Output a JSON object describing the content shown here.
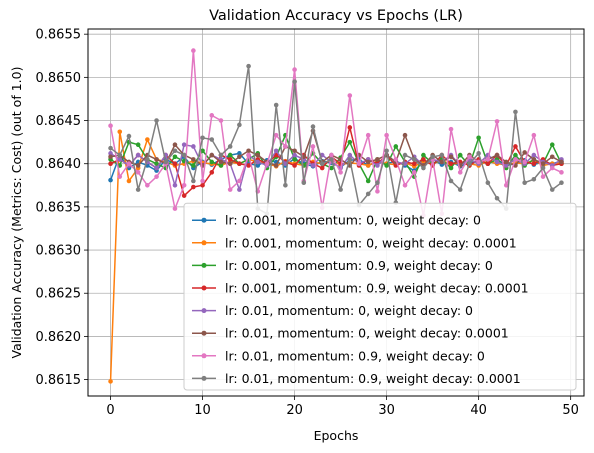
{
  "chart_data": {
    "type": "line",
    "title": "Validation Accuracy vs Epochs (LR)",
    "xlabel": "Epochs",
    "ylabel": "Validation Accuracy (Metrics: Cost) (out of 1.0)",
    "xlim": [
      -2.45,
      51.45
    ],
    "ylim": [
      0.86131,
      0.86556
    ],
    "xticks": [
      0,
      10,
      20,
      30,
      40,
      50
    ],
    "xtick_labels": [
      "0",
      "10",
      "20",
      "30",
      "40",
      "50"
    ],
    "yticks": [
      0.8615,
      0.862,
      0.8625,
      0.863,
      0.8635,
      0.864,
      0.8645,
      0.865,
      0.8655
    ],
    "ytick_labels": [
      "0.8615",
      "0.8620",
      "0.8625",
      "0.8630",
      "0.8635",
      "0.8640",
      "0.8645",
      "0.8650",
      "0.8655"
    ],
    "grid": true,
    "legend_position": "lower-right",
    "x": [
      0,
      1,
      2,
      3,
      4,
      5,
      6,
      7,
      8,
      9,
      10,
      11,
      12,
      13,
      14,
      15,
      16,
      17,
      18,
      19,
      20,
      21,
      22,
      23,
      24,
      25,
      26,
      27,
      28,
      29,
      30,
      31,
      32,
      33,
      34,
      35,
      36,
      37,
      38,
      39,
      40,
      41,
      42,
      43,
      44,
      45,
      46,
      47,
      48,
      49
    ],
    "series": [
      {
        "name": "lr: 0.001, momentum: 0, weight decay: 0",
        "color": "#1f77b4",
        "values": [
          0.86381,
          0.8641,
          0.86395,
          0.86402,
          0.86398,
          0.86392,
          0.86405,
          0.864,
          0.86408,
          0.86395,
          0.86402,
          0.86399,
          0.86405,
          0.8641,
          0.86412,
          0.864,
          0.86398,
          0.86404,
          0.86402,
          0.86398,
          0.86406,
          0.864,
          0.86397,
          0.86403,
          0.86401,
          0.86396,
          0.86404,
          0.86405,
          0.86398,
          0.86402,
          0.864,
          0.86403,
          0.86398,
          0.86392,
          0.86402,
          0.86405,
          0.86399,
          0.86402,
          0.86397,
          0.86401,
          0.86403,
          0.864,
          0.86405,
          0.86398,
          0.864,
          0.86404,
          0.86399,
          0.86402,
          0.864,
          0.86403
        ]
      },
      {
        "name": "lr: 0.001, momentum: 0, weight decay: 0.0001",
        "color": "#ff7f0e",
        "values": [
          0.86148,
          0.86437,
          0.8638,
          0.86395,
          0.86428,
          0.86405,
          0.86402,
          0.86398,
          0.864,
          0.86403,
          0.86401,
          0.864,
          0.86398,
          0.86402,
          0.864,
          0.86405,
          0.86402,
          0.864,
          0.86397,
          0.86403,
          0.864,
          0.86398,
          0.86402,
          0.864,
          0.86404,
          0.86399,
          0.86401,
          0.864,
          0.86398,
          0.86403,
          0.864,
          0.86399,
          0.86401,
          0.86397,
          0.86402,
          0.864,
          0.86404,
          0.86399,
          0.86401,
          0.864,
          0.86398,
          0.86403,
          0.864,
          0.86399,
          0.86401,
          0.864,
          0.86404,
          0.86398,
          0.864,
          0.86401
        ]
      },
      {
        "name": "lr: 0.001, momentum: 0.9, weight decay: 0",
        "color": "#2ca02c",
        "values": [
          0.86405,
          0.86398,
          0.86425,
          0.86422,
          0.86405,
          0.864,
          0.86395,
          0.86408,
          0.86403,
          0.86398,
          0.86415,
          0.86402,
          0.86398,
          0.8641,
          0.864,
          0.86405,
          0.86412,
          0.86395,
          0.86408,
          0.86433,
          0.86405,
          0.86398,
          0.86412,
          0.864,
          0.86395,
          0.86407,
          0.86425,
          0.864,
          0.8638,
          0.86405,
          0.86398,
          0.8642,
          0.86402,
          0.86385,
          0.8641,
          0.864,
          0.86405,
          0.86395,
          0.8641,
          0.86398,
          0.8643,
          0.864,
          0.86405,
          0.86395,
          0.8641,
          0.86398,
          0.86405,
          0.864,
          0.86422,
          0.864
        ]
      },
      {
        "name": "lr: 0.001, momentum: 0.9, weight decay: 0.0001",
        "color": "#d62728",
        "values": [
          0.864,
          0.86405,
          0.86398,
          0.8641,
          0.86402,
          0.86395,
          0.8641,
          0.864,
          0.86363,
          0.86373,
          0.86375,
          0.8639,
          0.8641,
          0.86405,
          0.864,
          0.86398,
          0.86405,
          0.864,
          0.8641,
          0.86402,
          0.86398,
          0.8641,
          0.864,
          0.86395,
          0.86408,
          0.864,
          0.86442,
          0.86398,
          0.86405,
          0.864,
          0.8641,
          0.86398,
          0.86402,
          0.864,
          0.86405,
          0.86398,
          0.8641,
          0.864,
          0.86402,
          0.86398,
          0.86405,
          0.864,
          0.8641,
          0.86398,
          0.8642,
          0.86402,
          0.864,
          0.86405,
          0.86398,
          0.864
        ]
      },
      {
        "name": "lr: 0.01, momentum: 0, weight decay: 0",
        "color": "#9467bd",
        "values": [
          0.86412,
          0.86405,
          0.86398,
          0.8641,
          0.86402,
          0.86395,
          0.8641,
          0.86375,
          0.86422,
          0.8642,
          0.86398,
          0.8641,
          0.86405,
          0.864,
          0.8637,
          0.8641,
          0.86402,
          0.86398,
          0.86415,
          0.864,
          0.8641,
          0.86405,
          0.86398,
          0.8641,
          0.86402,
          0.86395,
          0.8641,
          0.864,
          0.86405,
          0.86398,
          0.8641,
          0.86402,
          0.864,
          0.86408,
          0.86398,
          0.86405,
          0.86402,
          0.8641,
          0.86398,
          0.86405,
          0.864,
          0.8641,
          0.86402,
          0.86398,
          0.86405,
          0.864,
          0.8641,
          0.86402,
          0.86398,
          0.86405
        ]
      },
      {
        "name": "lr: 0.01, momentum: 0, weight decay: 0.0001",
        "color": "#8c564b",
        "values": [
          0.86408,
          0.8641,
          0.86402,
          0.86398,
          0.8641,
          0.86405,
          0.864,
          0.86422,
          0.8641,
          0.86405,
          0.86398,
          0.8641,
          0.86402,
          0.864,
          0.86408,
          0.86415,
          0.8641,
          0.86402,
          0.86398,
          0.8642,
          0.86415,
          0.86408,
          0.86438,
          0.86402,
          0.8641,
          0.86405,
          0.86398,
          0.8641,
          0.86402,
          0.86405,
          0.8641,
          0.86402,
          0.86433,
          0.86405,
          0.86398,
          0.8641,
          0.86402,
          0.86408,
          0.86398,
          0.8641,
          0.86402,
          0.86405,
          0.8641,
          0.86402,
          0.86398,
          0.86413,
          0.86405,
          0.864,
          0.86408,
          0.86402
        ]
      },
      {
        "name": "lr: 0.01, momentum: 0.9, weight decay: 0",
        "color": "#e377c2",
        "values": [
          0.86444,
          0.86385,
          0.864,
          0.8639,
          0.86375,
          0.86385,
          0.864,
          0.86348,
          0.86375,
          0.86531,
          0.8638,
          0.86456,
          0.8645,
          0.8637,
          0.8638,
          0.8641,
          0.86368,
          0.864,
          0.86433,
          0.8642,
          0.86509,
          0.8638,
          0.8642,
          0.86349,
          0.8641,
          0.8639,
          0.86479,
          0.864,
          0.86433,
          0.86368,
          0.86433,
          0.86405,
          0.86375,
          0.8639,
          0.8634,
          0.86405,
          0.86342,
          0.8644,
          0.8639,
          0.86408,
          0.86402,
          0.86405,
          0.86449,
          0.86375,
          0.86405,
          0.86402,
          0.86433,
          0.86385,
          0.86395,
          0.8639
        ]
      },
      {
        "name": "lr: 0.01, momentum: 0.9, weight decay: 0.0001",
        "color": "#7f7f7f",
        "values": [
          0.86418,
          0.8641,
          0.86432,
          0.8637,
          0.86405,
          0.8645,
          0.86402,
          0.86415,
          0.8641,
          0.8638,
          0.8643,
          0.86428,
          0.8641,
          0.8642,
          0.86445,
          0.86513,
          0.86348,
          0.86342,
          0.86468,
          0.86375,
          0.86495,
          0.86378,
          0.86443,
          0.864,
          0.86405,
          0.8637,
          0.86405,
          0.86352,
          0.86365,
          0.86378,
          0.86415,
          0.86355,
          0.8641,
          0.86405,
          0.86395,
          0.86408,
          0.8641,
          0.8638,
          0.8637,
          0.864,
          0.86412,
          0.86378,
          0.8636,
          0.86348,
          0.8646,
          0.86378,
          0.86382,
          0.86395,
          0.8637,
          0.86378
        ]
      }
    ]
  }
}
